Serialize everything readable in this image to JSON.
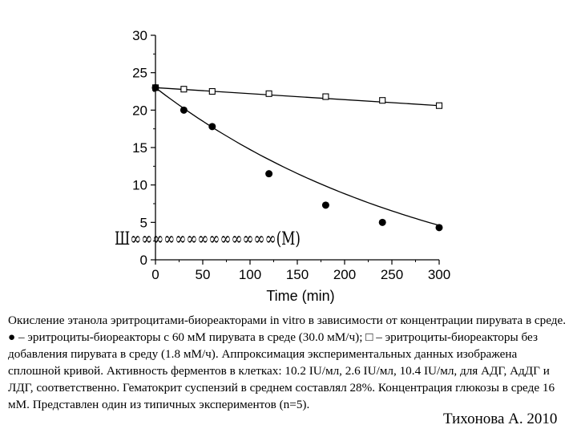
{
  "chart_data": {
    "type": "scatter",
    "xlabel": "Time (min)",
    "ylabel": "Ш∞∞∞∞∞∞∞∞∞∞∞∞∞(M)",
    "xlim": [
      0,
      300
    ],
    "ylim": [
      0,
      30
    ],
    "xticks": [
      "0",
      "50",
      "100",
      "150",
      "200",
      "250",
      "300"
    ],
    "yticks": [
      "0",
      "5",
      "10",
      "15",
      "20",
      "25",
      "30"
    ],
    "grid": false,
    "series": [
      {
        "marker": "filled-circle",
        "x": [
          0,
          30,
          60,
          120,
          180,
          240,
          300
        ],
        "y": [
          23.0,
          20.0,
          17.8,
          11.5,
          7.3,
          5.0,
          4.3
        ],
        "fit": "exponential-decay",
        "fit_curve": {
          "x": [
            0,
            50,
            100,
            150,
            200,
            250,
            300
          ],
          "y": [
            23.0,
            18.8,
            15.2,
            11.9,
            9.0,
            6.6,
            4.6
          ]
        }
      },
      {
        "marker": "open-square",
        "x": [
          0,
          30,
          60,
          120,
          180,
          240,
          300
        ],
        "y": [
          23.0,
          22.8,
          22.5,
          22.2,
          21.8,
          21.3,
          20.6
        ],
        "fit": "linear",
        "fit_curve": {
          "x": [
            0,
            300
          ],
          "y": [
            23.0,
            20.6
          ]
        }
      }
    ]
  },
  "caption": "Окисление этанола эритроцитами-биореакторами in vitro в зависимости от концентрации пирувата в среде. ● – эритроциты-биореакторы с 60 мМ пирувата в среде (30.0 мМ/ч); □ – эритроциты-биореакторы без добавления пирувата в среду (1.8 мМ/ч). Аппроксимация экспериментальных данных изображена сплошной кривой. Активность ферментов в клетках: 10.2 IU/мл, 2.6 IU/мл, 10.4 IU/мл, для АДГ, АдДГ и ЛДГ, соответственно. Гематокрит суспензий в среднем составлял 28%. Концентрация глюкозы в среде 16 мМ. Представлен один из типичных экспериментов (n=5).",
  "credit": "Тихонова А. 2010"
}
